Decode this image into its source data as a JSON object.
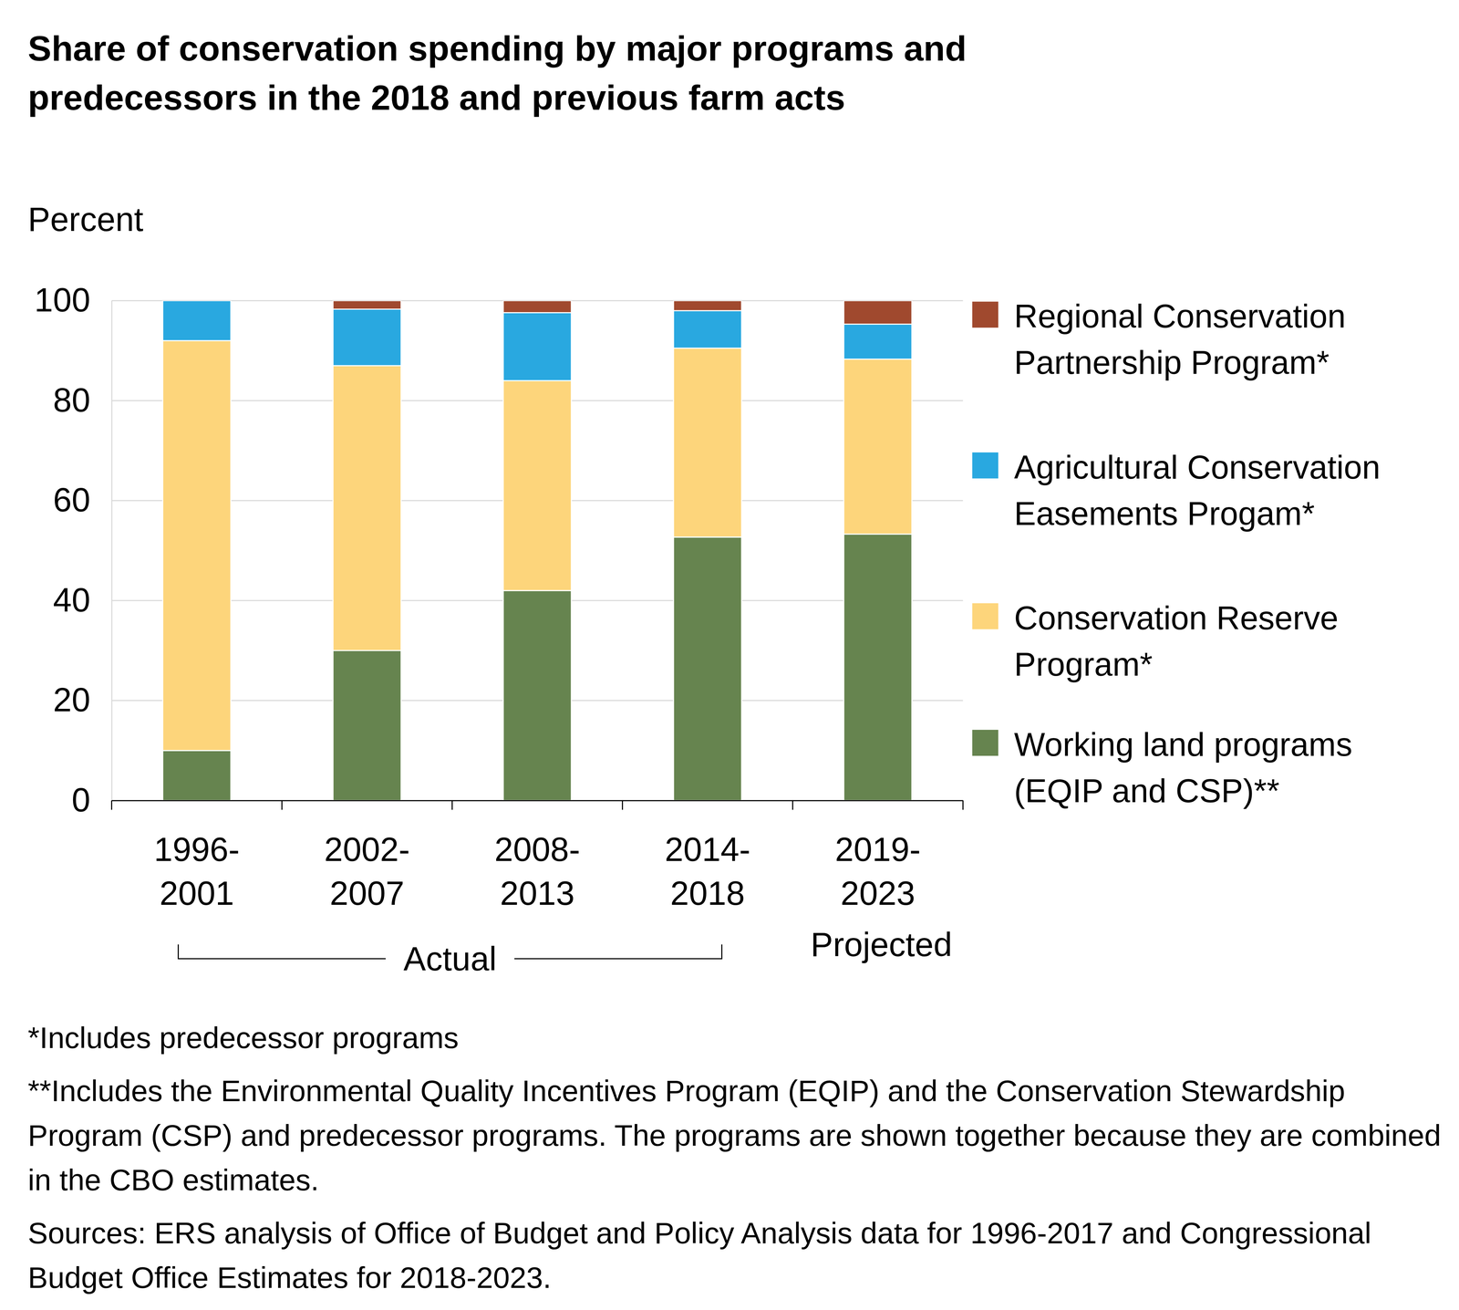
{
  "chart_data": {
    "type": "bar",
    "stacked": true,
    "title": "Share of conservation spending by major programs and predecessors in the 2018 and previous farm acts",
    "y_label": "Percent",
    "categories": [
      "1996-2001",
      "2002-2007",
      "2008-2013",
      "2014-2018",
      "2019-2023"
    ],
    "series": [
      {
        "name": "Working land programs (EQIP and CSP)**",
        "color": "#66844f",
        "values": [
          10,
          30,
          42,
          52.7,
          53.3
        ]
      },
      {
        "name": "Conservation Reserve Program*",
        "color": "#fdd57b",
        "values": [
          82,
          57,
          42,
          37.8,
          35
        ]
      },
      {
        "name": "Agricultural Conservation Easements Progam*",
        "color": "#29a8e0",
        "values": [
          8,
          11.3,
          13.6,
          7.5,
          7
        ]
      },
      {
        "name": "Regional Conservation Partnership Program*",
        "color": "#a0492e",
        "values": [
          0,
          1.7,
          2.4,
          2,
          4.7
        ]
      }
    ],
    "ylim": [
      0,
      100
    ],
    "yticks": [
      0,
      20,
      40,
      60,
      80,
      100
    ],
    "grid": true,
    "legend": "right",
    "annotations": [
      "Actual",
      "Projected"
    ],
    "notes": [
      "*Includes predecessor programs",
      "**Includes the Environmental Quality Incentives Program (EQIP) and the Conservation Stewardship Program (CSP) and predecessor programs. The programs are shown together because they are combined in the CBO estimates.",
      "Sources: ERS analysis of Office of Budget and Policy Analysis data for 1996-2017 and Congressional Budget Office Estimates for 2018-2023."
    ]
  }
}
